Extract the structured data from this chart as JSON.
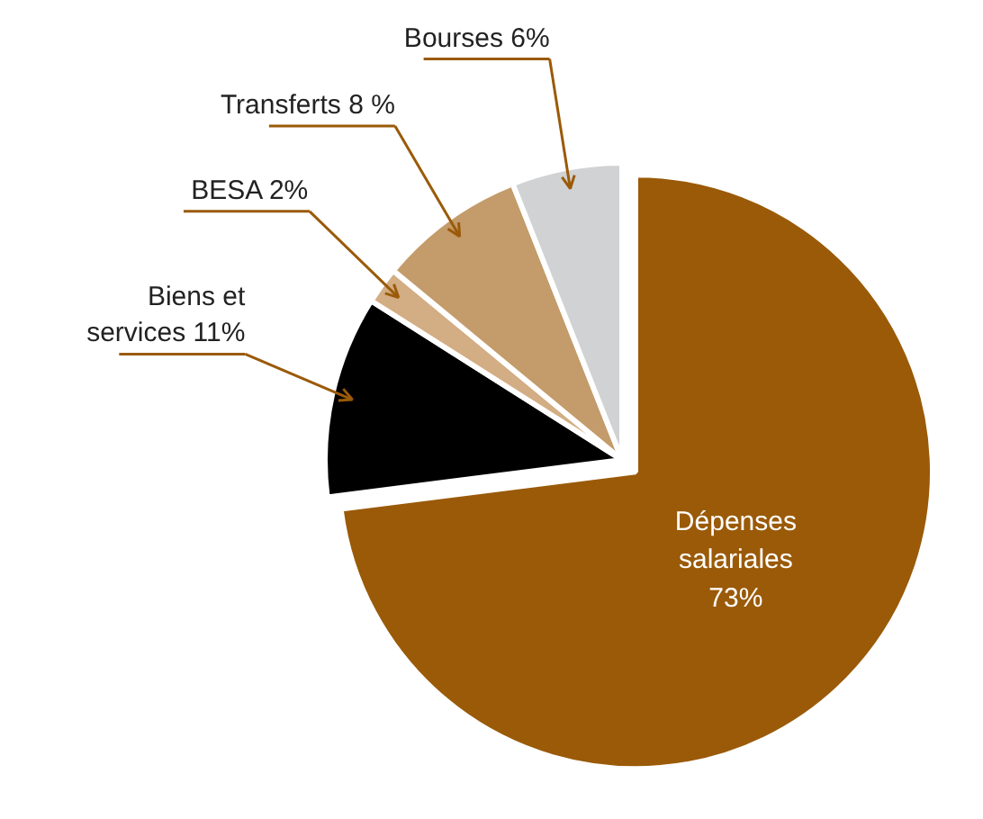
{
  "chart_data": {
    "type": "pie",
    "categories": [
      "Dépenses\nsalariales",
      "Biens et\nservices",
      "BESA",
      "Transferts",
      "Bourses"
    ],
    "values": [
      73,
      11,
      2,
      8,
      6
    ],
    "value_labels": [
      "73%",
      "11%",
      "2%",
      "8 %",
      "6%"
    ],
    "colors": [
      "#9a5a08",
      "#000000",
      "#d3ad83",
      "#c49b6a",
      "#d1d2d4"
    ]
  }
}
